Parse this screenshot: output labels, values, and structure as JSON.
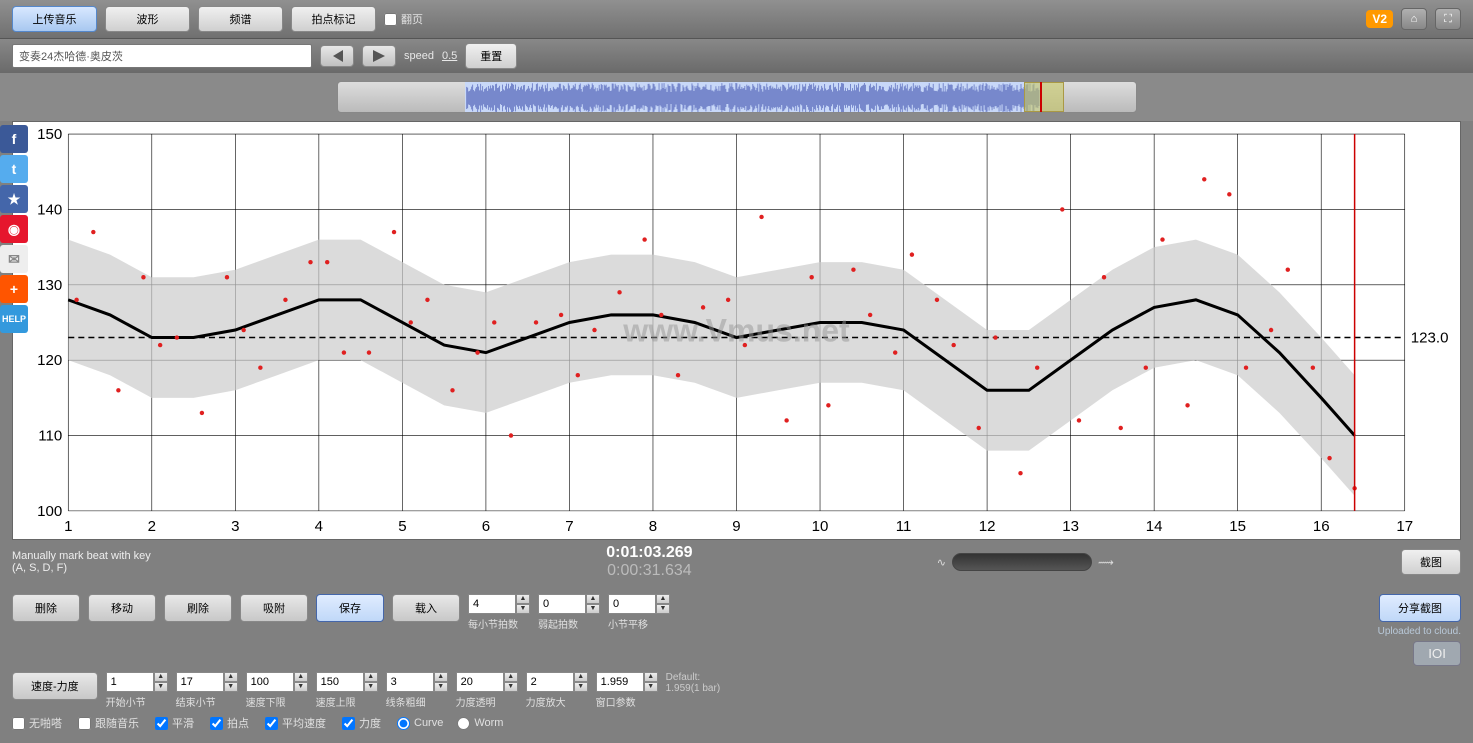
{
  "topbar": {
    "upload_btn": "上传音乐",
    "wave_btn": "波形",
    "spectrum_btn": "频谱",
    "beat_btn": "拍点标记",
    "flip_chk": "翻页",
    "version": "V2"
  },
  "row2": {
    "title": "变奏24杰哈德·奥皮茨",
    "speed_label": "speed",
    "speed_value": "0.5",
    "reset_btn": "重置"
  },
  "watermark": "www.Vmus.net",
  "chart": {
    "xmin": 1,
    "xmax": 17,
    "ymin": 100,
    "ymax": 150,
    "ytick_step": 10,
    "mean_value": 123.0,
    "mean_label": "123.0",
    "grid_color": "#000000",
    "background": "#ffffff",
    "band_color": "#cccccc",
    "curve_color": "#000000",
    "point_color": "#e02020",
    "curve_width": 3,
    "cursor_x": 16.4,
    "cursor_color": "#cc0000",
    "points": [
      [
        1.1,
        128
      ],
      [
        1.3,
        137
      ],
      [
        1.6,
        116
      ],
      [
        1.9,
        131
      ],
      [
        2.1,
        122
      ],
      [
        2.3,
        123
      ],
      [
        2.6,
        113
      ],
      [
        2.9,
        131
      ],
      [
        3.1,
        124
      ],
      [
        3.3,
        119
      ],
      [
        3.6,
        128
      ],
      [
        3.9,
        133
      ],
      [
        4.1,
        133
      ],
      [
        4.3,
        121
      ],
      [
        4.6,
        121
      ],
      [
        4.9,
        137
      ],
      [
        5.1,
        125
      ],
      [
        5.3,
        128
      ],
      [
        5.6,
        116
      ],
      [
        5.9,
        121
      ],
      [
        6.1,
        125
      ],
      [
        6.3,
        110
      ],
      [
        6.6,
        125
      ],
      [
        6.9,
        126
      ],
      [
        7.1,
        118
      ],
      [
        7.3,
        124
      ],
      [
        7.6,
        129
      ],
      [
        7.9,
        136
      ],
      [
        8.1,
        126
      ],
      [
        8.3,
        118
      ],
      [
        8.6,
        127
      ],
      [
        8.9,
        128
      ],
      [
        9.1,
        122
      ],
      [
        9.3,
        139
      ],
      [
        9.6,
        112
      ],
      [
        9.9,
        131
      ],
      [
        10.1,
        114
      ],
      [
        10.4,
        132
      ],
      [
        10.6,
        126
      ],
      [
        10.9,
        121
      ],
      [
        11.1,
        134
      ],
      [
        11.4,
        128
      ],
      [
        11.6,
        122
      ],
      [
        11.9,
        111
      ],
      [
        12.1,
        123
      ],
      [
        12.4,
        105
      ],
      [
        12.6,
        119
      ],
      [
        12.9,
        140
      ],
      [
        13.1,
        112
      ],
      [
        13.4,
        131
      ],
      [
        13.6,
        111
      ],
      [
        13.9,
        119
      ],
      [
        14.1,
        136
      ],
      [
        14.4,
        114
      ],
      [
        14.6,
        144
      ],
      [
        14.9,
        142
      ],
      [
        15.1,
        119
      ],
      [
        15.4,
        124
      ],
      [
        15.6,
        132
      ],
      [
        15.9,
        119
      ],
      [
        16.1,
        107
      ],
      [
        16.4,
        103
      ]
    ],
    "curve": [
      [
        1,
        128
      ],
      [
        1.5,
        126
      ],
      [
        2,
        123
      ],
      [
        2.5,
        123
      ],
      [
        3,
        124
      ],
      [
        3.5,
        126
      ],
      [
        4,
        128
      ],
      [
        4.5,
        128
      ],
      [
        5,
        125
      ],
      [
        5.5,
        122
      ],
      [
        6,
        121
      ],
      [
        6.5,
        123
      ],
      [
        7,
        125
      ],
      [
        7.5,
        126
      ],
      [
        8,
        126
      ],
      [
        8.5,
        125
      ],
      [
        9,
        123
      ],
      [
        9.5,
        124
      ],
      [
        10,
        125
      ],
      [
        10.5,
        125
      ],
      [
        11,
        124
      ],
      [
        11.5,
        120
      ],
      [
        12,
        116
      ],
      [
        12.5,
        116
      ],
      [
        13,
        120
      ],
      [
        13.5,
        124
      ],
      [
        14,
        127
      ],
      [
        14.5,
        128
      ],
      [
        15,
        126
      ],
      [
        15.5,
        121
      ],
      [
        16,
        115
      ],
      [
        16.4,
        110
      ]
    ],
    "band_half_width": 8
  },
  "status": {
    "hint1": "Manually mark beat with key",
    "hint2": "(A, S, D, F)",
    "time1": "0:01:03.269",
    "time2": "0:00:31.634",
    "screenshot_btn": "截图"
  },
  "controls": {
    "delete_btn": "删除",
    "move_btn": "移动",
    "brush_btn": "刷除",
    "snap_btn": "吸附",
    "save_btn": "保存",
    "load_btn": "载入",
    "beats_per_bar": {
      "value": "4",
      "label": "每小节拍数"
    },
    "upbeat": {
      "value": "0",
      "label": "弱起拍数"
    },
    "bar_offset": {
      "value": "0",
      "label": "小节平移"
    },
    "speed_force_btn": "速度-力度",
    "start_bar": {
      "value": "1",
      "label": "开始小节"
    },
    "end_bar": {
      "value": "17",
      "label": "结束小节"
    },
    "speed_min": {
      "value": "100",
      "label": "速度下限"
    },
    "speed_max": {
      "value": "150",
      "label": "速度上限"
    },
    "line_thick": {
      "value": "3",
      "label": "线条粗细"
    },
    "force_trans": {
      "value": "20",
      "label": "力度透明"
    },
    "force_zoom": {
      "value": "2",
      "label": "力度放大"
    },
    "window": {
      "value": "1.959",
      "label": "窗口参数"
    },
    "default_label": "Default:",
    "default_value": "1.959(1 bar)",
    "chk_noclick": "无啪嗒",
    "chk_follow": "跟随音乐",
    "chk_smooth": "平滑",
    "chk_beat": "拍点",
    "chk_avgspeed": "平均速度",
    "chk_force": "力度",
    "radio_curve": "Curve",
    "radio_worm": "Worm",
    "share_btn": "分享截图",
    "uploaded": "Uploaded to cloud.",
    "ioi_btn": "IOI"
  },
  "side_colors": [
    "#3b5998",
    "#1da1f2",
    "#ffaa00",
    "#e6162d",
    "#dddddd",
    "#ff5500",
    "#3399dd"
  ]
}
